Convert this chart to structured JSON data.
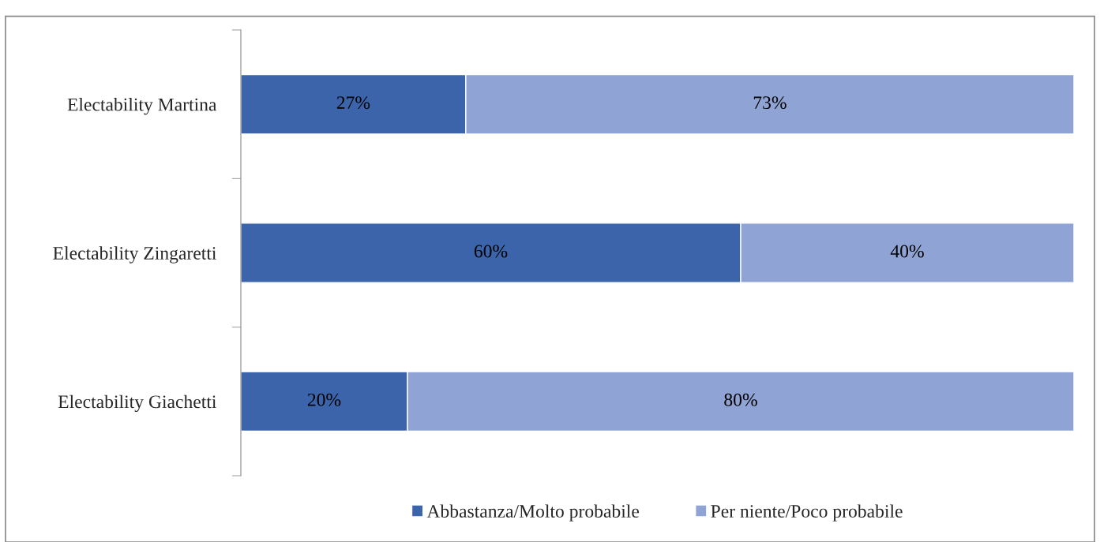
{
  "chart_data": {
    "type": "bar",
    "orientation": "horizontal",
    "stacked": true,
    "legend": "bottom",
    "categories": [
      "Electability Martina",
      "Electability Zingaretti",
      "Electability Giachetti"
    ],
    "series": [
      {
        "name": "Abbastanza/Molto probabile",
        "color": "#3c64ab",
        "values": [
          27,
          60,
          20
        ],
        "value_labels": [
          "27%",
          "60%",
          "20%"
        ]
      },
      {
        "name": "Per niente/Poco probabile",
        "color": "#8fa3d4",
        "values": [
          73,
          40,
          80
        ],
        "value_labels": [
          "73%",
          "40%",
          "80%"
        ]
      }
    ]
  }
}
